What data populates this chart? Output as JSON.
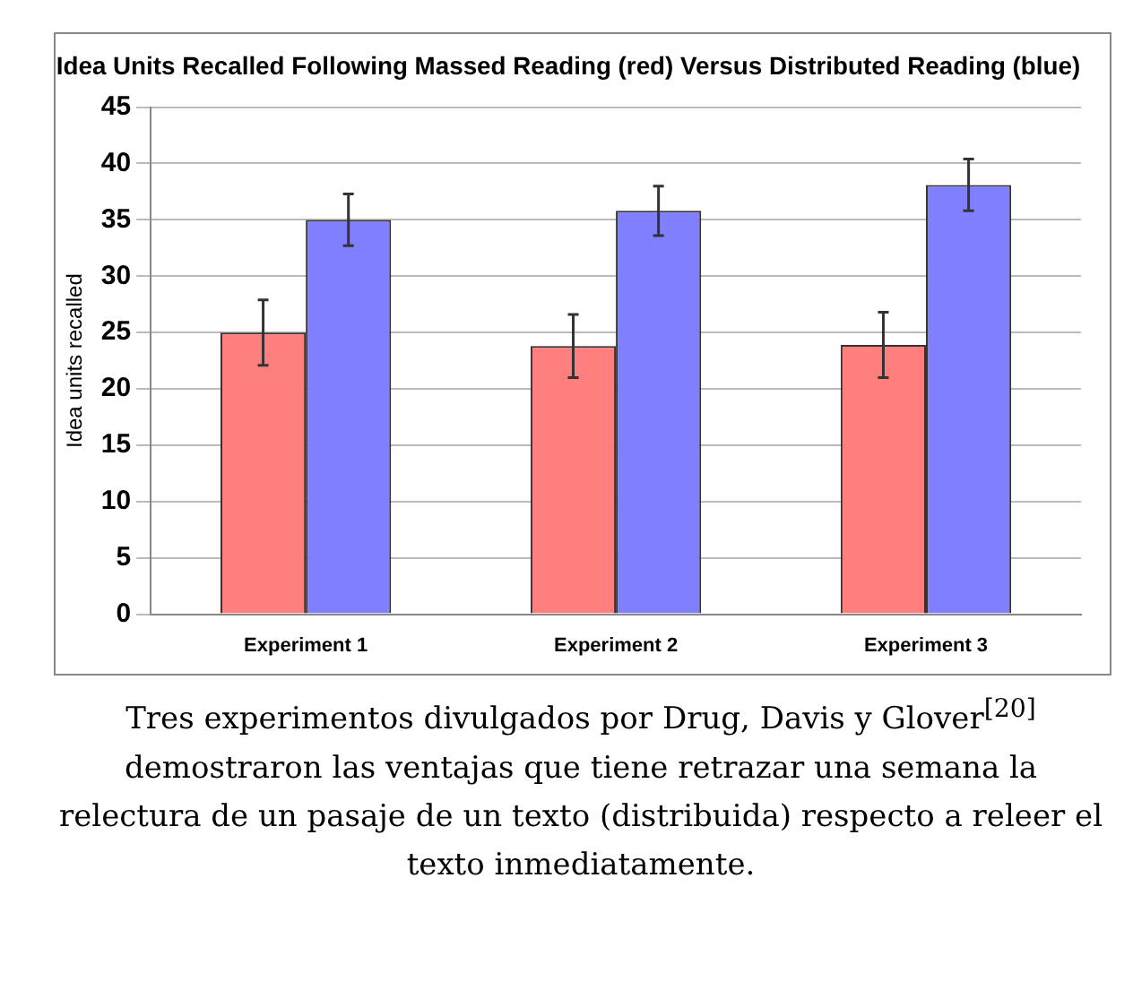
{
  "chart_data": {
    "type": "bar",
    "title": "Idea Units Recalled Following Massed Reading (red) Versus Distributed Reading (blue)",
    "ylabel": "Idea units recalled",
    "categories": [
      "Experiment 1",
      "Experiment 2",
      "Experiment 3"
    ],
    "series": [
      {
        "color": "#ff7f7f",
        "values": [
          25,
          23.8,
          23.9
        ],
        "errors": [
          2.9,
          2.8,
          2.9
        ]
      },
      {
        "color": "#7f7fff",
        "values": [
          35,
          35.8,
          38.1
        ],
        "errors": [
          2.3,
          2.2,
          2.3
        ]
      }
    ],
    "ylim": [
      0,
      45
    ],
    "yticks": [
      0,
      5,
      10,
      15,
      20,
      25,
      30,
      35,
      40,
      45
    ],
    "grid": "y",
    "legend": false,
    "annotations": [
      "Tres experimentos divulgados por Drug, Davis y Glover$^{[20]}$ demostraron las ventajas que tiene retrazar una semana la relectura de un pasaje de un texto (distribuida) respecto a releer el texto inmediatamente."
    ]
  }
}
